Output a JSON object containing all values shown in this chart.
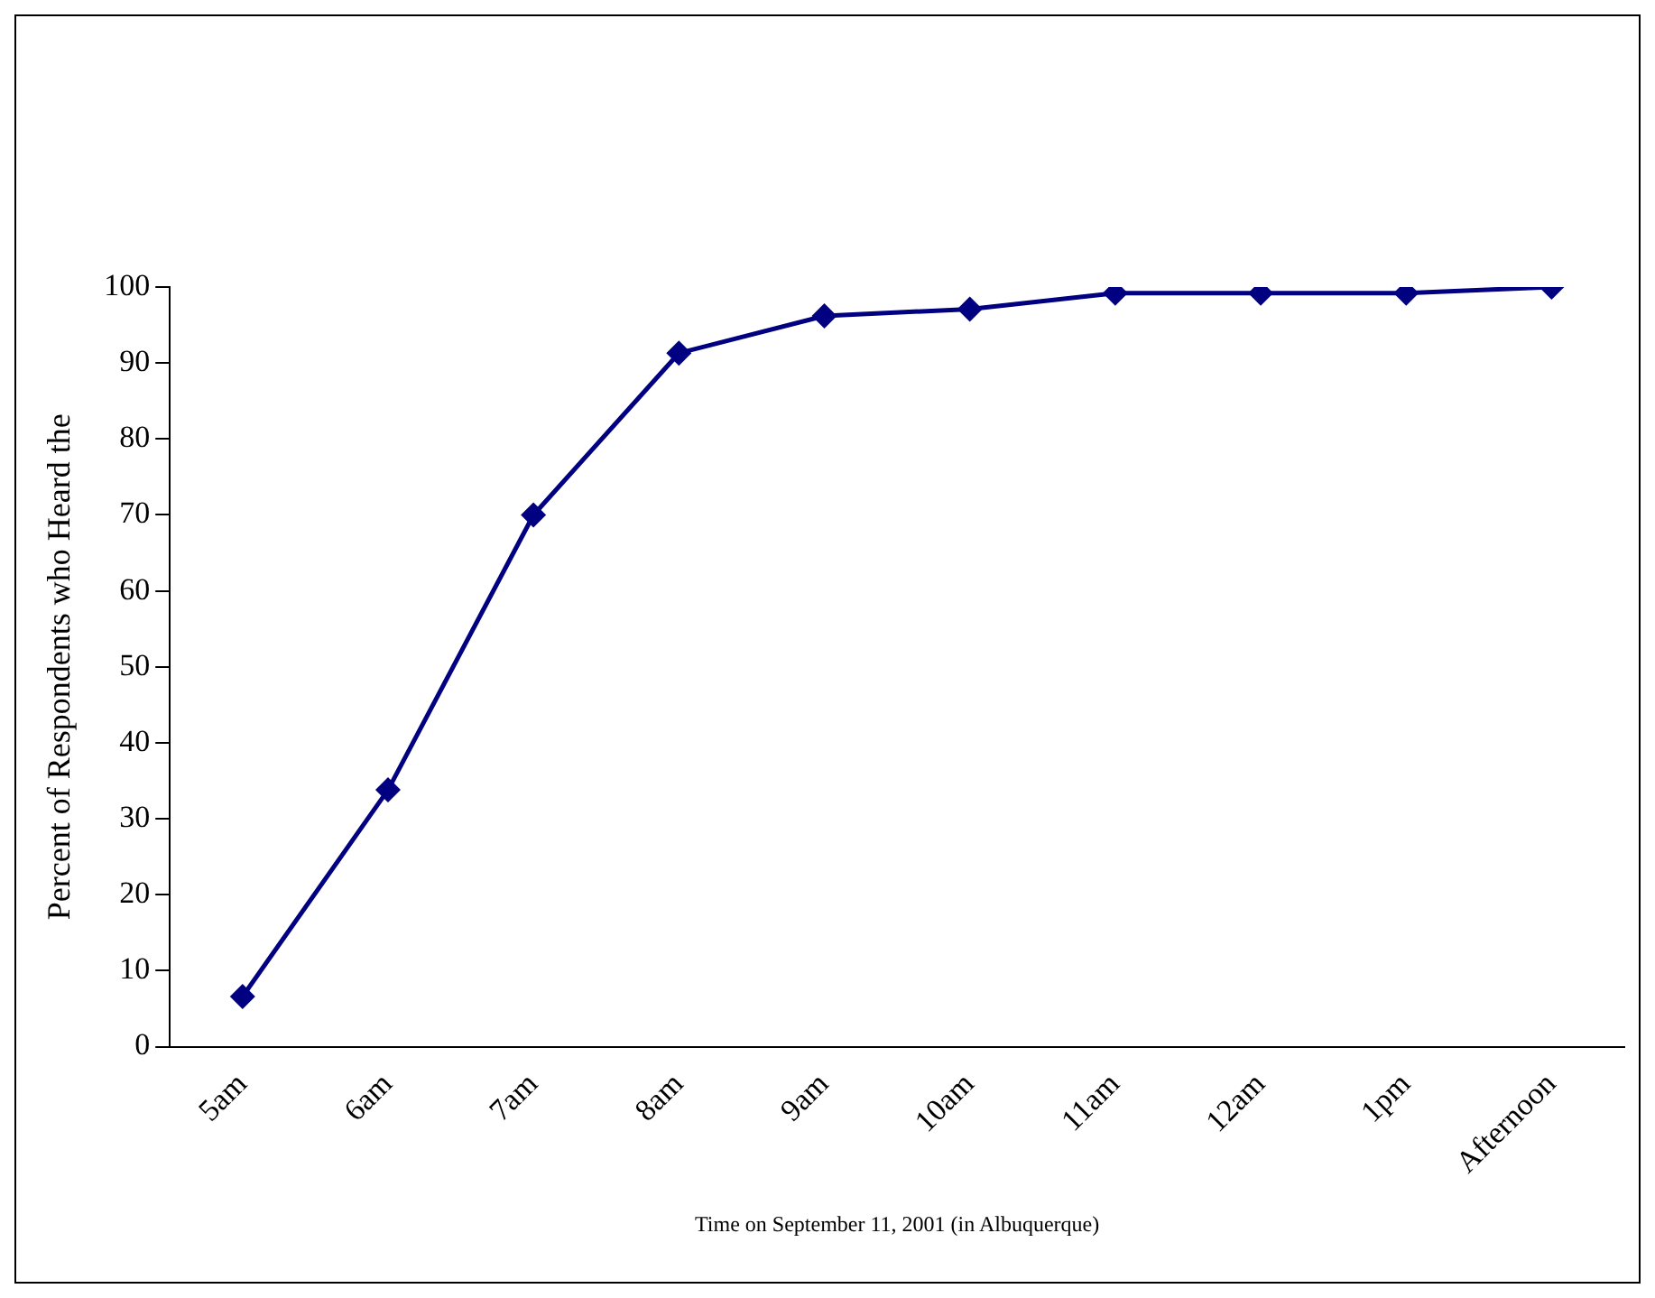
{
  "chart_data": {
    "type": "line",
    "xlabel": "Time on September 11, 2001 (in Albuquerque)",
    "ylabel": "Percent of Respondents who Heard the",
    "categories": [
      "5am",
      "6am",
      "7am",
      "8am",
      "9am",
      "10am",
      "11am",
      "12am",
      "1pm",
      "Afternoon"
    ],
    "series": [
      {
        "color": "#000080",
        "values": [
          6.6,
          33.8,
          70,
          91.3,
          96.2,
          97.1,
          99.2,
          99.2,
          99.2,
          100
        ]
      }
    ],
    "ylim": [
      0,
      100
    ],
    "yticks": [
      0,
      10,
      20,
      30,
      40,
      50,
      60,
      70,
      80,
      90,
      100
    ],
    "grid": false,
    "legend": false,
    "marker": "diamond",
    "line_style": "solid"
  }
}
